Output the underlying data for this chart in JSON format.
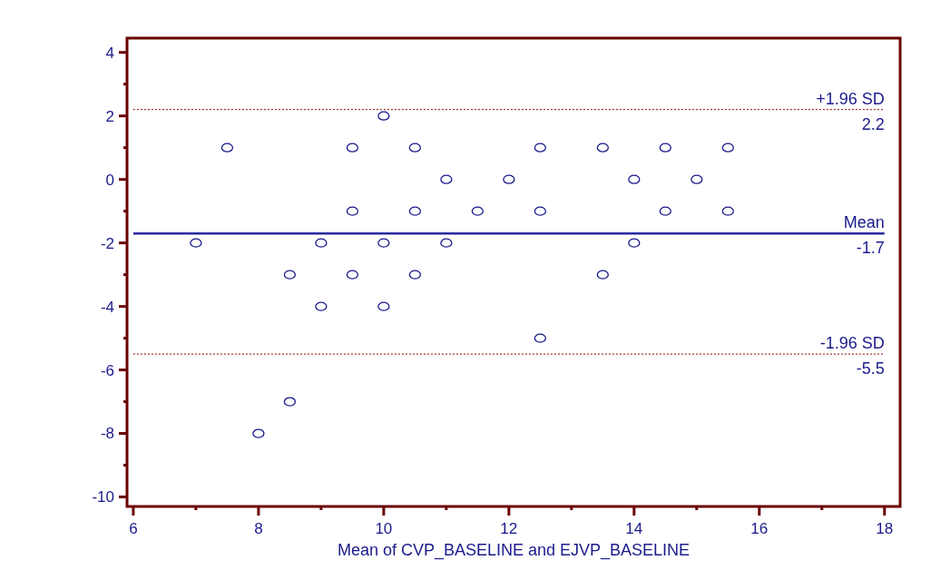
{
  "chart_data": {
    "type": "scatter",
    "xlabel": "Mean of CVP_BASELINE and EJVP_BASELINE",
    "xlim": [
      5.9,
      18.25
    ],
    "ylim": [
      -10.3,
      4.45
    ],
    "xticks": [
      6,
      {
        "value": 7,
        "label": null
      },
      8,
      {
        "value": 9,
        "label": null
      },
      10,
      {
        "value": 11,
        "label": null
      },
      12,
      {
        "value": 13,
        "label": null
      },
      14,
      {
        "value": 15,
        "label": null
      },
      16,
      {
        "value": 17,
        "label": null
      },
      18
    ],
    "yticks": [
      -10,
      {
        "value": -9,
        "label": null
      },
      -8,
      {
        "value": -7,
        "label": null
      },
      -6,
      {
        "value": -5,
        "label": null
      },
      -4,
      {
        "value": -3,
        "label": null
      },
      -2,
      {
        "value": -1,
        "label": null
      },
      0,
      {
        "value": 1,
        "label": null
      },
      2,
      {
        "value": 3,
        "label": null
      },
      4
    ],
    "marker": "circle",
    "series": [
      {
        "color": "#1a1a8c",
        "x": [
          7,
          7.5,
          8,
          8.5,
          8.5,
          9,
          9,
          9.5,
          9.5,
          9.5,
          10,
          10,
          10,
          10.5,
          10.5,
          10.5,
          11,
          11,
          11.5,
          12,
          12.5,
          12.5,
          12.5,
          13.5,
          13.5,
          14,
          14,
          14.5,
          14.5,
          15,
          15.5,
          15.5
        ],
        "values": [
          -2,
          1,
          -8,
          -3,
          -7,
          -2,
          -4,
          1,
          -1,
          -3,
          2,
          -2,
          -4,
          1,
          -1,
          -3,
          0,
          -2,
          -1,
          0,
          1,
          -1,
          -5,
          1,
          -3,
          0,
          -2,
          1,
          -1,
          0,
          1,
          -1
        ]
      }
    ],
    "ref_lines": [
      {
        "axis": "y",
        "value": 2.2,
        "label": "+1.96 SD",
        "color": "#800000",
        "line_style": "dotted"
      },
      {
        "axis": "y",
        "value": -1.7,
        "label": "Mean",
        "color": "#2a2aa0",
        "line_style": "solid"
      },
      {
        "axis": "y",
        "value": -5.5,
        "label": "-1.96 SD",
        "color": "#800000",
        "line_style": "dotted"
      }
    ],
    "annotations": [
      {
        "text": "2.2",
        "y": 2.2
      },
      {
        "text": "-1.7",
        "y": -1.7
      },
      {
        "text": "-5.5",
        "y": -5.5
      }
    ]
  }
}
